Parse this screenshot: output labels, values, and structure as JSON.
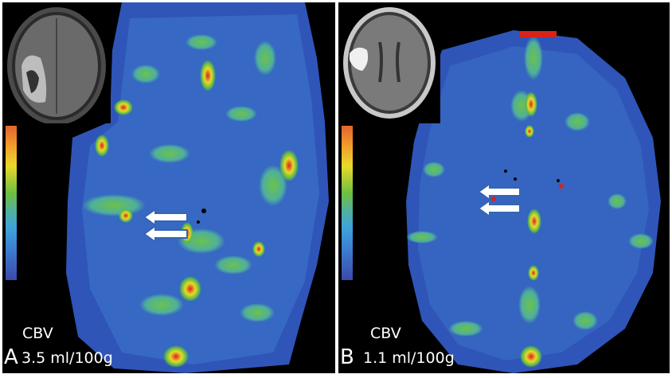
{
  "panels": [
    {
      "letter": "A",
      "caption": "CBV",
      "value": "3.5 ml/100g"
    },
    {
      "letter": "B",
      "caption": "CBV",
      "value": "1.1 ml/100g"
    }
  ],
  "colors": {
    "background": "#000000",
    "map_low": "#2e4fb5",
    "map_mid": "#4aa6c8",
    "map_green": "#5cba45",
    "map_yellow": "#e8d92c",
    "map_high": "#d8231b",
    "arrow_fill": "#ffffff",
    "arrow_outline": "#3566b0"
  },
  "icons": [
    "left-arrow-icon",
    "color-scale-bar"
  ]
}
